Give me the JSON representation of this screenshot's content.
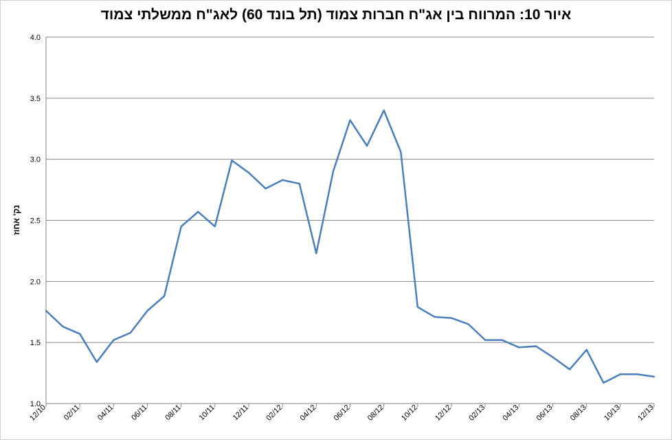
{
  "chart_data": {
    "type": "line",
    "title": "איור 10: המרווח בין אג\"ח חברות צמוד (תל בונד 60) לאג\"ח ממשלתי צמוד",
    "ylabel": "נק' אחוז",
    "xlabel": "",
    "ylim": [
      1.0,
      4.0
    ],
    "yticks": [
      "1.0",
      "1.5",
      "2.0",
      "2.5",
      "3.0",
      "3.5",
      "4.0"
    ],
    "grid": true,
    "legend": "none",
    "line_color": "#4a7ebb",
    "x_tick_labels": [
      "12/10",
      "02/11",
      "04/11",
      "06/11",
      "08/11",
      "10/11",
      "12/11",
      "02/12",
      "04/12",
      "06/12",
      "08/12",
      "10/12",
      "12/12",
      "02/13",
      "04/13",
      "06/13",
      "08/13",
      "10/13",
      "12/13"
    ],
    "values": [
      1.76,
      1.63,
      1.57,
      1.34,
      1.52,
      1.58,
      1.76,
      1.88,
      2.45,
      2.57,
      2.45,
      2.99,
      2.89,
      2.76,
      2.83,
      2.8,
      2.23,
      2.9,
      3.32,
      3.11,
      3.4,
      3.06,
      1.79,
      1.71,
      1.7,
      1.65,
      1.52,
      1.52,
      1.46,
      1.47,
      1.38,
      1.28,
      1.44,
      1.17,
      1.24,
      1.24,
      1.22
    ]
  }
}
